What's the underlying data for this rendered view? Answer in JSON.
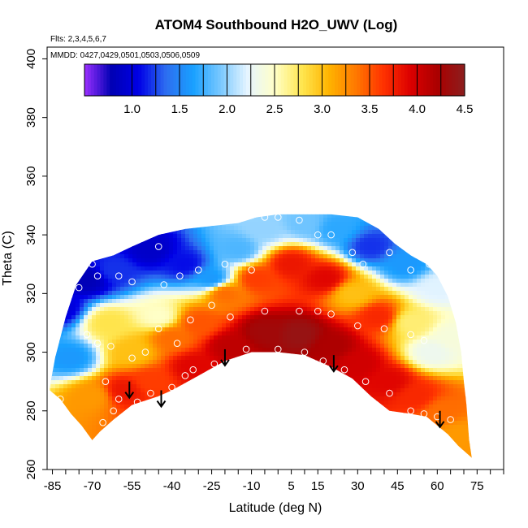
{
  "chart_data": {
    "type": "heatmap",
    "title": "ATOM4 Southbound H2O_UWV (Log)",
    "flights_note": "Flts: 2,3,4,5,6,7",
    "dates_note": "MMDD: 0427,0429,0501,0503,0506,0509",
    "xlabel": "Latitude (deg N)",
    "ylabel": "Theta (C)",
    "xlim": [
      -87,
      85
    ],
    "ylim": [
      260,
      404
    ],
    "xticks": [
      -85,
      -70,
      -55,
      -40,
      -25,
      -10,
      5,
      15,
      30,
      45,
      60,
      75
    ],
    "xtick_labels": [
      "-85",
      "-70",
      "-55",
      "-40",
      "-25",
      "-10",
      "5",
      "15",
      "30",
      "45",
      "60",
      "75"
    ],
    "yticks": [
      260,
      280,
      300,
      320,
      340,
      360,
      380,
      400
    ],
    "ytick_labels": [
      "260",
      "280",
      "300",
      "320",
      "340",
      "360",
      "380",
      "400"
    ],
    "colorbar": {
      "range": [
        0.5,
        4.5
      ],
      "ticks": [
        1.0,
        1.5,
        2.0,
        2.5,
        3.0,
        3.5,
        4.0,
        4.5
      ],
      "tick_labels": [
        "1.0",
        "1.5",
        "2.0",
        "2.5",
        "3.0",
        "3.5",
        "4.0",
        "4.5"
      ],
      "colors": [
        "#9b30ff",
        "#0000b4",
        "#0000e6",
        "#2d6ef0",
        "#19a0ff",
        "#78c8ff",
        "#e6f5ff",
        "#ffffc8",
        "#ffe650",
        "#ffb400",
        "#ff7800",
        "#ff3200",
        "#dc0000",
        "#aa0000",
        "#8c1e1e"
      ]
    },
    "domain": {
      "top": [
        [
          -86,
          288
        ],
        [
          -84,
          298
        ],
        [
          -80,
          312
        ],
        [
          -76,
          323
        ],
        [
          -70,
          331
        ],
        [
          -62,
          333
        ],
        [
          -55,
          336
        ],
        [
          -45,
          340
        ],
        [
          -35,
          342
        ],
        [
          -25,
          343
        ],
        [
          -15,
          344
        ],
        [
          -8,
          346
        ],
        [
          0,
          347
        ],
        [
          10,
          347
        ],
        [
          20,
          347
        ],
        [
          30,
          346
        ],
        [
          38,
          342
        ],
        [
          44,
          337
        ],
        [
          50,
          333
        ],
        [
          56,
          330
        ],
        [
          60,
          326
        ],
        [
          64,
          319
        ],
        [
          67,
          310
        ],
        [
          69,
          300
        ],
        [
          70,
          290
        ],
        [
          71,
          282
        ],
        [
          72,
          270
        ],
        [
          73,
          264
        ]
      ],
      "bottom": [
        [
          -86,
          287
        ],
        [
          -82,
          284
        ],
        [
          -78,
          279
        ],
        [
          -74,
          275
        ],
        [
          -70,
          270
        ],
        [
          -67,
          273
        ],
        [
          -62,
          277
        ],
        [
          -55,
          282
        ],
        [
          -45,
          285
        ],
        [
          -40,
          287
        ],
        [
          -30,
          292
        ],
        [
          -20,
          297
        ],
        [
          -10,
          300
        ],
        [
          0,
          300
        ],
        [
          10,
          299
        ],
        [
          20,
          295
        ],
        [
          28,
          291
        ],
        [
          35,
          285
        ],
        [
          42,
          280
        ],
        [
          50,
          279
        ],
        [
          56,
          278
        ],
        [
          60,
          275
        ],
        [
          64,
          272
        ],
        [
          68,
          268
        ],
        [
          73,
          264
        ]
      ]
    },
    "field_anchors": [
      {
        "lat": -82,
        "theta": 315,
        "value": 1.0
      },
      {
        "lat": -72,
        "theta": 325,
        "value": 0.8
      },
      {
        "lat": -62,
        "theta": 328,
        "value": 1.2
      },
      {
        "lat": -48,
        "theta": 335,
        "value": 0.9
      },
      {
        "lat": -35,
        "theta": 330,
        "value": 1.1
      },
      {
        "lat": -25,
        "theta": 325,
        "value": 1.6
      },
      {
        "lat": -15,
        "theta": 335,
        "value": 1.8
      },
      {
        "lat": -5,
        "theta": 342,
        "value": 2.0
      },
      {
        "lat": 10,
        "theta": 344,
        "value": 1.9
      },
      {
        "lat": 22,
        "theta": 342,
        "value": 1.7
      },
      {
        "lat": 35,
        "theta": 336,
        "value": 1.2
      },
      {
        "lat": 48,
        "theta": 330,
        "value": 1.6
      },
      {
        "lat": 60,
        "theta": 322,
        "value": 2.2
      },
      {
        "lat": 66,
        "theta": 305,
        "value": 2.4
      },
      {
        "lat": -78,
        "theta": 298,
        "value": 1.6
      },
      {
        "lat": -64,
        "theta": 310,
        "value": 2.8
      },
      {
        "lat": -55,
        "theta": 300,
        "value": 3.0
      },
      {
        "lat": -45,
        "theta": 312,
        "value": 2.5
      },
      {
        "lat": -40,
        "theta": 305,
        "value": 3.4
      },
      {
        "lat": -30,
        "theta": 310,
        "value": 3.5
      },
      {
        "lat": -20,
        "theta": 320,
        "value": 3.4
      },
      {
        "lat": -8,
        "theta": 325,
        "value": 3.6
      },
      {
        "lat": 5,
        "theta": 330,
        "value": 3.8
      },
      {
        "lat": 18,
        "theta": 325,
        "value": 3.9
      },
      {
        "lat": 28,
        "theta": 320,
        "value": 3.0
      },
      {
        "lat": 38,
        "theta": 312,
        "value": 3.7
      },
      {
        "lat": 50,
        "theta": 310,
        "value": 2.7
      },
      {
        "lat": 58,
        "theta": 300,
        "value": 2.3
      },
      {
        "lat": -70,
        "theta": 285,
        "value": 3.2
      },
      {
        "lat": -58,
        "theta": 287,
        "value": 3.8
      },
      {
        "lat": -48,
        "theta": 290,
        "value": 3.6
      },
      {
        "lat": -32,
        "theta": 295,
        "value": 3.9
      },
      {
        "lat": -18,
        "theta": 302,
        "value": 4.1
      },
      {
        "lat": -5,
        "theta": 307,
        "value": 4.3
      },
      {
        "lat": 8,
        "theta": 306,
        "value": 4.4
      },
      {
        "lat": 20,
        "theta": 302,
        "value": 4.2
      },
      {
        "lat": 30,
        "theta": 296,
        "value": 4.0
      },
      {
        "lat": 42,
        "theta": 290,
        "value": 3.9
      },
      {
        "lat": 52,
        "theta": 285,
        "value": 3.7
      },
      {
        "lat": 62,
        "theta": 280,
        "value": 3.4
      },
      {
        "lat": 68,
        "theta": 272,
        "value": 3.2
      }
    ],
    "observations": [
      [
        -80,
        320
      ],
      [
        -75,
        322
      ],
      [
        -70,
        330
      ],
      [
        -68,
        326
      ],
      [
        -60,
        326
      ],
      [
        -55,
        324
      ],
      [
        -45,
        336
      ],
      [
        -43,
        323
      ],
      [
        -37,
        326
      ],
      [
        -30,
        328
      ],
      [
        -20,
        330
      ],
      [
        -10,
        328
      ],
      [
        -5,
        346
      ],
      [
        0,
        346
      ],
      [
        8,
        345
      ],
      [
        15,
        340
      ],
      [
        20,
        340
      ],
      [
        28,
        334
      ],
      [
        32,
        330
      ],
      [
        42,
        334
      ],
      [
        50,
        328
      ],
      [
        57,
        330
      ],
      [
        -72,
        306
      ],
      [
        -68,
        303
      ],
      [
        -63,
        302
      ],
      [
        -55,
        298
      ],
      [
        -50,
        300
      ],
      [
        -45,
        308
      ],
      [
        -38,
        303
      ],
      [
        -33,
        311
      ],
      [
        -25,
        316
      ],
      [
        -18,
        312
      ],
      [
        -5,
        314
      ],
      [
        8,
        314
      ],
      [
        15,
        314
      ],
      [
        20,
        313
      ],
      [
        30,
        309
      ],
      [
        40,
        308
      ],
      [
        50,
        306
      ],
      [
        55,
        304
      ],
      [
        -65,
        290
      ],
      [
        -60,
        284
      ],
      [
        -53,
        283
      ],
      [
        -48,
        286
      ],
      [
        -40,
        288
      ],
      [
        -32,
        294
      ],
      [
        -24,
        296
      ],
      [
        -12,
        301
      ],
      [
        0,
        301
      ],
      [
        10,
        300
      ],
      [
        17,
        297
      ],
      [
        25,
        294
      ],
      [
        33,
        290
      ],
      [
        42,
        286
      ],
      [
        50,
        280
      ],
      [
        55,
        279
      ],
      [
        60,
        278
      ],
      [
        65,
        277
      ],
      [
        -82,
        284
      ],
      [
        -66,
        276
      ],
      [
        -62,
        280
      ],
      [
        -35,
        292
      ]
    ],
    "arrows": [
      {
        "lat": -56,
        "theta": 290
      },
      {
        "lat": -44,
        "theta": 287
      },
      {
        "lat": -20,
        "theta": 301
      },
      {
        "lat": 21,
        "theta": 299
      },
      {
        "lat": 61,
        "theta": 280
      }
    ]
  }
}
